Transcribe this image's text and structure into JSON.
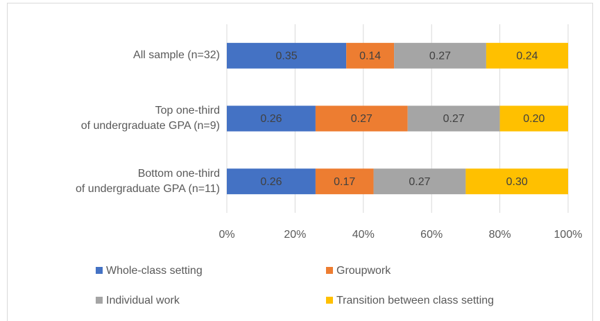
{
  "chart_data": {
    "type": "stacked-bar-horizontal",
    "categories": [
      "All sample (n=32)",
      "Top one-third\nof undergraduate GPA (n=9)",
      "Bottom one-third\nof undergraduate GPA (n=11)"
    ],
    "series": [
      {
        "name": "Whole-class setting",
        "color": "#4472c4",
        "values": [
          35,
          26,
          26
        ],
        "value_labels": [
          "0.35",
          "0.26",
          "0.26"
        ]
      },
      {
        "name": "Groupwork",
        "color": "#ed7d31",
        "values": [
          14,
          27,
          17
        ],
        "value_labels": [
          "0.14",
          "0.27",
          "0.17"
        ]
      },
      {
        "name": "Individual work",
        "color": "#a5a5a5",
        "values": [
          27,
          27,
          27
        ],
        "value_labels": [
          "0.27",
          "0.27",
          "0.27"
        ]
      },
      {
        "name": "Transition between class setting",
        "color": "#ffc000",
        "values": [
          24,
          20,
          30
        ],
        "value_labels": [
          "0.24",
          "0.20",
          "0.30"
        ]
      }
    ],
    "xlim": [
      0,
      100
    ],
    "xticks": [
      {
        "value": 0,
        "label": "0%"
      },
      {
        "value": 20,
        "label": "20%"
      },
      {
        "value": 40,
        "label": "40%"
      },
      {
        "value": 60,
        "label": "60%"
      },
      {
        "value": 80,
        "label": "80%"
      },
      {
        "value": 100,
        "label": "100%"
      }
    ],
    "grid": true
  }
}
